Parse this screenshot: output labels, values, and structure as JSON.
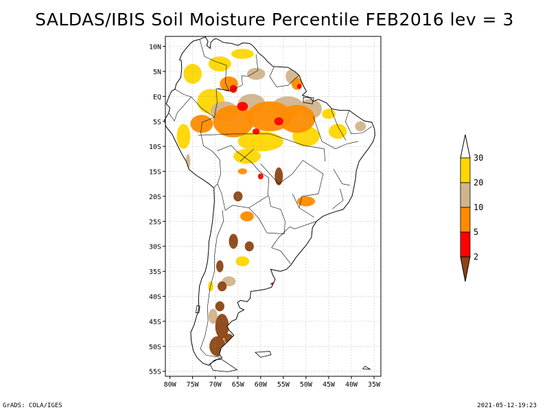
{
  "title": "SALDAS/IBIS Soil Moisture Percentile FEB2016 lev = 3",
  "footer": {
    "left": "GrADS: COLA/IGES",
    "right": "2021-05-12-19:23"
  },
  "map": {
    "lon_range": [
      -81,
      -33.5
    ],
    "lat_range": [
      -56,
      12
    ],
    "lon_ticks": [
      {
        "value": -80,
        "label": "80W"
      },
      {
        "value": -75,
        "label": "75W"
      },
      {
        "value": -70,
        "label": "70W"
      },
      {
        "value": -65,
        "label": "65W"
      },
      {
        "value": -60,
        "label": "60W"
      },
      {
        "value": -55,
        "label": "55W"
      },
      {
        "value": -50,
        "label": "50W"
      },
      {
        "value": -45,
        "label": "45W"
      },
      {
        "value": -40,
        "label": "40W"
      },
      {
        "value": -35,
        "label": "35W"
      }
    ],
    "lat_ticks": [
      {
        "value": 10,
        "label": "10N"
      },
      {
        "value": 5,
        "label": "5N"
      },
      {
        "value": 0,
        "label": "EQ"
      },
      {
        "value": -5,
        "label": "5S"
      },
      {
        "value": -10,
        "label": "10S"
      },
      {
        "value": -15,
        "label": "15S"
      },
      {
        "value": -20,
        "label": "20S"
      },
      {
        "value": -25,
        "label": "25S"
      },
      {
        "value": -30,
        "label": "30S"
      },
      {
        "value": -35,
        "label": "35S"
      },
      {
        "value": -40,
        "label": "40S"
      },
      {
        "value": -45,
        "label": "45S"
      },
      {
        "value": -50,
        "label": "50S"
      },
      {
        "value": -55,
        "label": "55S"
      }
    ]
  },
  "colorbar": {
    "levels": [
      {
        "label": "2",
        "color": "#8b4513"
      },
      {
        "label": "5",
        "color": "#ff0000"
      },
      {
        "label": "10",
        "color": "#ff8c00"
      },
      {
        "label": "20",
        "color": "#d2b48c"
      },
      {
        "label": "30",
        "color": "#ffd700"
      }
    ],
    "below_color": "#8b4513",
    "above_color": "#ffffff"
  },
  "patches": [
    {
      "lon": -66,
      "lat": -5,
      "rx": 4.5,
      "ry": 3.2,
      "cls": "10"
    },
    {
      "lon": -58,
      "lat": -4,
      "rx": 5.0,
      "ry": 3.0,
      "cls": "10"
    },
    {
      "lon": -52,
      "lat": -4.5,
      "rx": 4.0,
      "ry": 2.8,
      "cls": "10"
    },
    {
      "lon": -68,
      "lat": -3,
      "rx": 3.0,
      "ry": 2.0,
      "cls": "20"
    },
    {
      "lon": -62,
      "lat": -1.5,
      "rx": 3.0,
      "ry": 2.0,
      "cls": "20"
    },
    {
      "lon": -54,
      "lat": -2,
      "rx": 3.5,
      "ry": 2.0,
      "cls": "20"
    },
    {
      "lon": -49,
      "lat": -2.5,
      "rx": 2.5,
      "ry": 2.0,
      "cls": "20"
    },
    {
      "lon": -73,
      "lat": -5.5,
      "rx": 2.5,
      "ry": 1.8,
      "cls": "10"
    },
    {
      "lon": -64,
      "lat": -2,
      "rx": 1.2,
      "ry": 0.9,
      "cls": "5"
    },
    {
      "lon": -66,
      "lat": 1.5,
      "rx": 0.8,
      "ry": 0.8,
      "cls": "5"
    },
    {
      "lon": -56,
      "lat": -5,
      "rx": 1.0,
      "ry": 0.8,
      "cls": "5"
    },
    {
      "lon": -61,
      "lat": -7,
      "rx": 0.8,
      "ry": 0.6,
      "cls": "5"
    },
    {
      "lon": -67,
      "lat": 2.5,
      "rx": 2.0,
      "ry": 1.5,
      "cls": "10"
    },
    {
      "lon": -61,
      "lat": 4.5,
      "rx": 2.0,
      "ry": 1.2,
      "cls": "20"
    },
    {
      "lon": -53,
      "lat": 4.0,
      "rx": 1.5,
      "ry": 1.5,
      "cls": "20"
    },
    {
      "lon": -52,
      "lat": 2.5,
      "rx": 1.2,
      "ry": 1.2,
      "cls": "10"
    },
    {
      "lon": -51.5,
      "lat": 2.0,
      "rx": 0.5,
      "ry": 0.5,
      "cls": "5"
    },
    {
      "lon": -75,
      "lat": 4.5,
      "rx": 2.0,
      "ry": 2.0,
      "cls": "30"
    },
    {
      "lon": -69,
      "lat": 6.5,
      "rx": 2.5,
      "ry": 1.5,
      "cls": "30"
    },
    {
      "lon": -64,
      "lat": 8.5,
      "rx": 2.5,
      "ry": 1.0,
      "cls": "30"
    },
    {
      "lon": -71,
      "lat": -1,
      "rx": 3.0,
      "ry": 2.5,
      "cls": "30"
    },
    {
      "lon": -60,
      "lat": -9,
      "rx": 5.0,
      "ry": 2.0,
      "cls": "30"
    },
    {
      "lon": -50,
      "lat": -8,
      "rx": 3.0,
      "ry": 2.0,
      "cls": "30"
    },
    {
      "lon": -63,
      "lat": -12,
      "rx": 3.0,
      "ry": 1.5,
      "cls": "30"
    },
    {
      "lon": -77,
      "lat": -8,
      "rx": 1.5,
      "ry": 2.5,
      "cls": "30"
    },
    {
      "lon": -43,
      "lat": -7,
      "rx": 2.0,
      "ry": 1.5,
      "cls": "30"
    },
    {
      "lon": -38,
      "lat": -6,
      "rx": 1.2,
      "ry": 1.0,
      "cls": "20"
    },
    {
      "lon": -45,
      "lat": -3.5,
      "rx": 1.5,
      "ry": 1.0,
      "cls": "30"
    },
    {
      "lon": -56,
      "lat": -16,
      "rx": 0.9,
      "ry": 1.8,
      "cls": "2"
    },
    {
      "lon": -60,
      "lat": -16,
      "rx": 0.6,
      "ry": 0.6,
      "cls": "5"
    },
    {
      "lon": -64,
      "lat": -15,
      "rx": 1.0,
      "ry": 0.6,
      "cls": "10"
    },
    {
      "lon": -65,
      "lat": -20,
      "rx": 1.0,
      "ry": 1.0,
      "cls": "2"
    },
    {
      "lon": -50,
      "lat": -21,
      "rx": 2.0,
      "ry": 1.0,
      "cls": "10"
    },
    {
      "lon": -63,
      "lat": -24,
      "rx": 1.5,
      "ry": 1.0,
      "cls": "10"
    },
    {
      "lon": -66,
      "lat": -29,
      "rx": 1.0,
      "ry": 1.5,
      "cls": "2"
    },
    {
      "lon": -62.5,
      "lat": -30,
      "rx": 1.0,
      "ry": 1.0,
      "cls": "2"
    },
    {
      "lon": -64,
      "lat": -33,
      "rx": 1.5,
      "ry": 1.0,
      "cls": "30"
    },
    {
      "lon": -69,
      "lat": -34,
      "rx": 0.8,
      "ry": 1.2,
      "cls": "2"
    },
    {
      "lon": -68.5,
      "lat": -38,
      "rx": 1.0,
      "ry": 1.0,
      "cls": "2"
    },
    {
      "lon": -67,
      "lat": -37,
      "rx": 1.5,
      "ry": 1.0,
      "cls": "20"
    },
    {
      "lon": -68.5,
      "lat": -46,
      "rx": 1.5,
      "ry": 2.5,
      "cls": "2"
    },
    {
      "lon": -69.5,
      "lat": -50,
      "rx": 1.8,
      "ry": 2.0,
      "cls": "2"
    },
    {
      "lon": -67,
      "lat": -48.5,
      "rx": 1.0,
      "ry": 1.0,
      "cls": "2"
    },
    {
      "lon": -70.5,
      "lat": -44,
      "rx": 1.0,
      "ry": 1.5,
      "cls": "20"
    },
    {
      "lon": -69,
      "lat": -42,
      "rx": 1.0,
      "ry": 1.0,
      "cls": "2"
    },
    {
      "lon": -71,
      "lat": -38,
      "rx": 0.6,
      "ry": 1.0,
      "cls": "30"
    },
    {
      "lon": -76,
      "lat": -13,
      "rx": 0.5,
      "ry": 1.5,
      "cls": "20"
    },
    {
      "lon": -57,
      "lat": -37.5,
      "rx": 0.8,
      "ry": 0.3,
      "cls": "5"
    }
  ]
}
